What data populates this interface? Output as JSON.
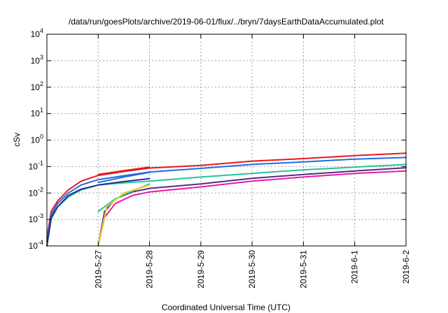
{
  "chart_data": {
    "type": "line",
    "title": "/data/run/goesPlots/archive/2019-06-01/flux/../bryn/7daysEarthDataAccumulated.plot",
    "xlabel": "Coordinated Universal Time (UTC)",
    "ylabel": "cSv",
    "x_range": [
      "2019-05-26",
      "2019-06-02"
    ],
    "y_range": [
      0.0001,
      10000
    ],
    "y_scale": "log",
    "grid": true,
    "x_ticks": [
      {
        "date": "2019-05-27",
        "label": "2019-5-27"
      },
      {
        "date": "2019-05-28",
        "label": "2019-5-28"
      },
      {
        "date": "2019-05-29",
        "label": "2019-5-29"
      },
      {
        "date": "2019-05-30",
        "label": "2019-5-30"
      },
      {
        "date": "2019-05-31",
        "label": "2019-5-31"
      },
      {
        "date": "2019-06-01",
        "label": "2019-6-1"
      },
      {
        "date": "2019-06-02",
        "label": "2019-6-2"
      }
    ],
    "y_ticks": [
      {
        "value": 0.0001,
        "base": "10",
        "exp": "-4"
      },
      {
        "value": 0.001,
        "base": "10",
        "exp": "-3"
      },
      {
        "value": 0.01,
        "base": "10",
        "exp": "-2"
      },
      {
        "value": 0.1,
        "base": "10",
        "exp": "-1"
      },
      {
        "value": 1,
        "base": "10",
        "exp": "0"
      },
      {
        "value": 10,
        "base": "10",
        "exp": "1"
      },
      {
        "value": 100,
        "base": "10",
        "exp": "2"
      },
      {
        "value": 1000,
        "base": "10",
        "exp": "3"
      },
      {
        "value": 10000,
        "base": "10",
        "exp": "4"
      }
    ],
    "series": [
      {
        "color": "#e8191c",
        "points": [
          [
            "2019-05-26 00:00",
            0.0002
          ],
          [
            "2019-05-26 02:00",
            0.002
          ],
          [
            "2019-05-26 05:00",
            0.005
          ],
          [
            "2019-05-26 10:00",
            0.013
          ],
          [
            "2019-05-26 16:00",
            0.028
          ],
          [
            "2019-05-27 00:00",
            0.046
          ],
          [
            "2019-05-27 12:00",
            0.065
          ],
          [
            "2019-05-28 00:00",
            0.088
          ],
          [
            "2019-05-29 00:00",
            0.11
          ],
          [
            "2019-05-30 00:00",
            0.16
          ],
          [
            "2019-05-31 00:00",
            0.2
          ],
          [
            "2019-06-01 00:00",
            0.26
          ],
          [
            "2019-06-02 00:00",
            0.32
          ]
        ]
      },
      {
        "color": "#1e6fe0",
        "points": [
          [
            "2019-05-26 00:00",
            0.00015
          ],
          [
            "2019-05-26 02:00",
            0.0015
          ],
          [
            "2019-05-26 05:00",
            0.004
          ],
          [
            "2019-05-26 10:00",
            0.01
          ],
          [
            "2019-05-26 16:00",
            0.02
          ],
          [
            "2019-05-27 00:00",
            0.032
          ],
          [
            "2019-05-27 12:00",
            0.045
          ],
          [
            "2019-05-28 00:00",
            0.062
          ],
          [
            "2019-05-29 00:00",
            0.085
          ],
          [
            "2019-05-30 00:00",
            0.12
          ],
          [
            "2019-05-31 00:00",
            0.15
          ],
          [
            "2019-06-01 00:00",
            0.19
          ],
          [
            "2019-06-02 00:00",
            0.22
          ]
        ]
      },
      {
        "color": "#22c5a0",
        "points": [
          [
            "2019-05-26 00:00",
            0.0001
          ],
          [
            "2019-05-26 02:00",
            0.001
          ],
          [
            "2019-05-26 05:00",
            0.003
          ],
          [
            "2019-05-26 10:00",
            0.007
          ],
          [
            "2019-05-26 16:00",
            0.013
          ],
          [
            "2019-05-27 00:00",
            0.02
          ],
          [
            "2019-05-27 12:00",
            0.024
          ],
          [
            "2019-05-28 00:00",
            0.028
          ],
          [
            "2019-05-29 00:00",
            0.04
          ],
          [
            "2019-05-30 00:00",
            0.055
          ],
          [
            "2019-05-31 00:00",
            0.075
          ],
          [
            "2019-06-01 00:00",
            0.095
          ],
          [
            "2019-06-02 00:00",
            0.12
          ]
        ]
      },
      {
        "color": "#2c2c8c",
        "points": [
          [
            "2019-05-26 00:00",
            0.0001
          ],
          [
            "2019-05-26 02:00",
            0.0012
          ],
          [
            "2019-05-26 05:00",
            0.003
          ],
          [
            "2019-05-26 10:00",
            0.008
          ],
          [
            "2019-05-26 16:00",
            0.014
          ],
          [
            "2019-05-27 00:00",
            0.02
          ],
          [
            "2019-05-27 12:00",
            0.027
          ],
          [
            "2019-05-28 00:00",
            0.035
          ]
        ]
      },
      {
        "color": "#5a2a80",
        "points": [
          [
            "2019-05-27 00:00",
            0.0001
          ],
          [
            "2019-05-27 03:00",
            0.002
          ],
          [
            "2019-05-27 08:00",
            0.006
          ],
          [
            "2019-05-27 16:00",
            0.011
          ],
          [
            "2019-05-28 00:00",
            0.015
          ],
          [
            "2019-05-29 00:00",
            0.022
          ],
          [
            "2019-05-30 00:00",
            0.036
          ],
          [
            "2019-05-31 00:00",
            0.05
          ],
          [
            "2019-06-01 00:00",
            0.068
          ],
          [
            "2019-06-02 00:00",
            0.09
          ]
        ]
      },
      {
        "color": "#e81aa8",
        "points": [
          [
            "2019-05-27 00:00",
            0.0001
          ],
          [
            "2019-05-27 03:00",
            0.0012
          ],
          [
            "2019-05-27 08:00",
            0.004
          ],
          [
            "2019-05-27 16:00",
            0.008
          ],
          [
            "2019-05-28 00:00",
            0.011
          ],
          [
            "2019-05-29 00:00",
            0.017
          ],
          [
            "2019-05-30 00:00",
            0.028
          ],
          [
            "2019-05-31 00:00",
            0.04
          ],
          [
            "2019-06-01 00:00",
            0.055
          ],
          [
            "2019-06-02 00:00",
            0.068
          ]
        ]
      },
      {
        "color": "#22c5a0",
        "points": [
          [
            "2019-05-27 00:00",
            0.002
          ],
          [
            "2019-05-27 08:00",
            0.006
          ],
          [
            "2019-05-27 16:00",
            0.012
          ],
          [
            "2019-05-28 00:00",
            0.022
          ]
        ]
      },
      {
        "color": "#1e6fe0",
        "points": [
          [
            "2019-05-27 00:00",
            0.025
          ],
          [
            "2019-05-27 12:00",
            0.04
          ],
          [
            "2019-05-28 00:00",
            0.06
          ]
        ]
      },
      {
        "color": "#e8d020",
        "points": [
          [
            "2019-05-27 00:00",
            0.0001
          ],
          [
            "2019-05-27 04:00",
            0.003
          ],
          [
            "2019-05-27 12:00",
            0.01
          ],
          [
            "2019-05-28 00:00",
            0.02
          ]
        ]
      },
      {
        "color": "#e8191c",
        "points": [
          [
            "2019-05-27 00:00",
            0.05
          ],
          [
            "2019-05-27 12:00",
            0.07
          ],
          [
            "2019-05-28 00:00",
            0.095
          ]
        ]
      }
    ]
  }
}
